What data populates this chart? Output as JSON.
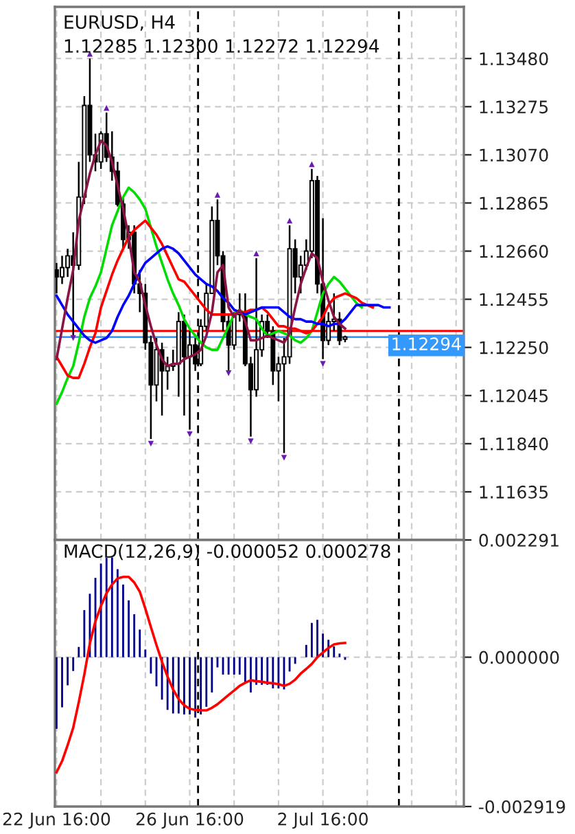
{
  "chart_data": [
    {
      "type": "candlestick",
      "title": "EURUSD, H4",
      "subtitle": "1.12285 1.12300 1.12272 1.12294",
      "ohlc": [
        [
          1.1258,
          1.1261,
          1.1248,
          1.1255
        ],
        [
          1.1255,
          1.1264,
          1.1252,
          1.1259
        ],
        [
          1.1259,
          1.1267,
          1.1255,
          1.1264
        ],
        [
          1.1264,
          1.1274,
          1.123,
          1.126
        ],
        [
          1.126,
          1.1304,
          1.1258,
          1.1289
        ],
        [
          1.1289,
          1.1332,
          1.1286,
          1.1328
        ],
        [
          1.1328,
          1.1348,
          1.1304,
          1.1307
        ],
        [
          1.1307,
          1.1316,
          1.13,
          1.1304
        ],
        [
          1.1304,
          1.1317,
          1.1301,
          1.1316
        ],
        [
          1.1316,
          1.1325,
          1.1304,
          1.1306
        ],
        [
          1.1306,
          1.1317,
          1.1296,
          1.13
        ],
        [
          1.13,
          1.1304,
          1.1285,
          1.1286
        ],
        [
          1.1286,
          1.1289,
          1.1267,
          1.1271
        ],
        [
          1.1271,
          1.1277,
          1.1267,
          1.1274
        ],
        [
          1.1274,
          1.1277,
          1.1248,
          1.1252
        ],
        [
          1.1252,
          1.1258,
          1.124,
          1.1248
        ],
        [
          1.1248,
          1.1252,
          1.1224,
          1.1227
        ],
        [
          1.1227,
          1.123,
          1.1186,
          1.1209
        ],
        [
          1.1209,
          1.1229,
          1.1202,
          1.1224
        ],
        [
          1.1224,
          1.1227,
          1.1196,
          1.1215
        ],
        [
          1.1215,
          1.1221,
          1.1207,
          1.1217
        ],
        [
          1.1217,
          1.1224,
          1.1215,
          1.1218
        ],
        [
          1.1218,
          1.124,
          1.1204,
          1.1236
        ],
        [
          1.1236,
          1.1239,
          1.1196,
          1.1221
        ],
        [
          1.1221,
          1.1232,
          1.119,
          1.1226
        ],
        [
          1.1226,
          1.1229,
          1.1215,
          1.1218
        ],
        [
          1.1218,
          1.1237,
          1.1217,
          1.1234
        ],
        [
          1.1234,
          1.1252,
          1.1232,
          1.1248
        ],
        [
          1.1248,
          1.1285,
          1.1248,
          1.1279
        ],
        [
          1.1279,
          1.1288,
          1.126,
          1.1264
        ],
        [
          1.1264,
          1.1266,
          1.1232,
          1.1236
        ],
        [
          1.1236,
          1.1239,
          1.1215,
          1.1226
        ],
        [
          1.1226,
          1.124,
          1.1224,
          1.1239
        ],
        [
          1.1239,
          1.1248,
          1.1236,
          1.124
        ],
        [
          1.124,
          1.1248,
          1.1217,
          1.1218
        ],
        [
          1.1218,
          1.1221,
          1.1187,
          1.1207
        ],
        [
          1.1207,
          1.1263,
          1.1204,
          1.1224
        ],
        [
          1.1224,
          1.1239,
          1.1221,
          1.1236
        ],
        [
          1.1236,
          1.1239,
          1.1229,
          1.1232
        ],
        [
          1.1232,
          1.1234,
          1.1209,
          1.1215
        ],
        [
          1.1215,
          1.1221,
          1.1202,
          1.1218
        ],
        [
          1.1218,
          1.1229,
          1.118,
          1.1221
        ],
        [
          1.1221,
          1.1277,
          1.1218,
          1.1267
        ],
        [
          1.1267,
          1.1271,
          1.1248,
          1.1255
        ],
        [
          1.1255,
          1.1264,
          1.1248,
          1.126
        ],
        [
          1.126,
          1.1271,
          1.1258,
          1.1266
        ],
        [
          1.1266,
          1.1301,
          1.1263,
          1.1296
        ],
        [
          1.1296,
          1.1298,
          1.1248,
          1.1252
        ],
        [
          1.1252,
          1.128,
          1.122,
          1.1228
        ],
        [
          1.1228,
          1.124,
          1.1226,
          1.1236
        ],
        [
          1.1236,
          1.1248,
          1.1232,
          1.1237
        ],
        [
          1.1237,
          1.124,
          1.1226,
          1.1228
        ],
        [
          1.12285,
          1.123,
          1.12272,
          1.12294
        ],
        null,
        null,
        null,
        null,
        null,
        null,
        null,
        null,
        null,
        null,
        null,
        null,
        null,
        null,
        null,
        null,
        null,
        null,
        null,
        null,
        null
      ],
      "series": [
        {
          "type": "line",
          "color": "#00dd00",
          "values": [
            1.1201,
            1.1206,
            1.1212,
            1.1217,
            1.1227,
            1.1238,
            1.1246,
            1.1251,
            1.1257,
            1.1267,
            1.1277,
            1.1283,
            1.1289,
            1.1293,
            1.1291,
            1.1288,
            1.1284,
            1.1276,
            1.1268,
            1.1261,
            1.1254,
            1.1248,
            1.1243,
            1.1237,
            1.1233,
            1.123,
            1.1227,
            1.1225,
            1.1224,
            1.1224,
            1.1229,
            1.1234,
            1.1239,
            1.1241,
            1.1239,
            1.1238,
            1.1237,
            1.1233,
            1.123,
            1.1231,
            1.1232,
            1.1231,
            1.123,
            1.1228,
            1.1227,
            1.1229,
            1.1232,
            1.124,
            1.1248,
            1.1252,
            1.1255,
            1.1253,
            1.125,
            1.1247,
            1.1244,
            1.1242,
            null,
            null,
            null,
            null,
            null,
            null,
            null,
            null,
            null,
            null,
            null,
            null,
            null,
            null,
            null,
            null,
            null,
            null
          ]
        },
        {
          "type": "line",
          "color": "#ff0000",
          "values": [
            1.1221,
            1.1217,
            1.1213,
            1.1212,
            1.1212,
            1.1218,
            1.1225,
            1.1231,
            1.1242,
            1.1249,
            1.1256,
            1.1262,
            1.1267,
            1.1272,
            1.1275,
            1.1277,
            1.1279,
            1.1276,
            1.1273,
            1.1269,
            1.1264,
            1.1259,
            1.1254,
            1.1253,
            1.125,
            1.1247,
            1.1244,
            1.1241,
            1.1239,
            1.1239,
            1.1239,
            1.1239,
            1.1239,
            1.124,
            1.124,
            1.1241,
            1.1241,
            1.1242,
            1.124,
            1.1237,
            1.1234,
            1.1234,
            1.1233,
            1.1233,
            1.1232,
            1.1231,
            1.1232,
            1.1235,
            1.1238,
            1.1243,
            1.1246,
            1.1247,
            1.1248,
            1.1247,
            1.1246,
            1.1244,
            1.1243,
            1.1242,
            null,
            null,
            null,
            null,
            null,
            null,
            null,
            null,
            null,
            null,
            null,
            null,
            null,
            null,
            null,
            null
          ]
        },
        {
          "type": "line",
          "color": "#0000ff",
          "values": [
            1.1247,
            1.1243,
            1.1239,
            1.1236,
            1.1233,
            1.123,
            1.1228,
            1.1227,
            1.1228,
            1.1229,
            1.1232,
            1.1238,
            1.1243,
            1.1247,
            1.1252,
            1.1257,
            1.1261,
            1.1263,
            1.1265,
            1.1267,
            1.1268,
            1.1267,
            1.1265,
            1.1262,
            1.1259,
            1.1256,
            1.1254,
            1.1252,
            1.1251,
            1.1249,
            1.1246,
            1.1244,
            1.1241,
            1.124,
            1.1239,
            1.124,
            1.1241,
            1.1242,
            1.1242,
            1.1242,
            1.1242,
            1.124,
            1.1238,
            1.1237,
            1.1237,
            1.1236,
            1.1236,
            1.1235,
            1.1235,
            1.1234,
            1.1235,
            1.1235,
            1.1237,
            1.124,
            1.1243,
            1.1243,
            1.1243,
            1.1243,
            1.1243,
            1.1242,
            1.1242,
            null,
            null,
            null,
            null,
            null,
            null,
            null,
            null,
            null,
            null,
            null,
            null,
            null
          ]
        },
        {
          "type": "line",
          "color": "#8b1446",
          "values": [
            1.122,
            1.1233,
            1.1246,
            1.1258,
            1.1279,
            1.1289,
            1.1299,
            1.1307,
            1.1313,
            1.1311,
            1.1304,
            1.1294,
            1.1284,
            1.1272,
            1.1257,
            1.1253,
            1.1243,
            1.1234,
            1.1226,
            1.122,
            1.1217,
            1.1218,
            1.1218,
            1.122,
            1.1221,
            1.1222,
            1.1224,
            1.123,
            1.124,
            1.1257,
            1.126,
            1.1242,
            1.1238,
            1.1241,
            1.1236,
            1.1228,
            1.1228,
            1.1229,
            1.123,
            1.1229,
            1.1228,
            1.1227,
            1.1231,
            1.1242,
            1.1252,
            1.1259,
            1.1265,
            1.1263,
            1.1253,
            1.1245,
            1.1238,
            1.1235,
            1.1233,
            null,
            null,
            null,
            null,
            null,
            null,
            null,
            null,
            null,
            null,
            null,
            null,
            null,
            null,
            null,
            null,
            null,
            null,
            null,
            null,
            null
          ]
        },
        {
          "type": "scatter",
          "marker": "triangle",
          "color": "#6a1bb0",
          "values": [
            null,
            null,
            null,
            null,
            null,
            null,
            1.135,
            null,
            null,
            1.1327,
            null,
            null,
            null,
            null,
            null,
            null,
            null,
            null,
            null,
            null,
            null,
            null,
            null,
            null,
            null,
            null,
            null,
            null,
            null,
            1.129,
            null,
            null,
            null,
            null,
            null,
            null,
            1.1265,
            null,
            null,
            null,
            null,
            null,
            1.1279,
            null,
            null,
            null,
            1.1303,
            null,
            null,
            null,
            null,
            null,
            null,
            null,
            null,
            null,
            null,
            null,
            null,
            null,
            null,
            null,
            null,
            null,
            null,
            null,
            null,
            null,
            null,
            null,
            null,
            null,
            null,
            null
          ]
        },
        {
          "type": "scatter",
          "marker": "triangle-down",
          "color": "#6a1bb0",
          "values": [
            null,
            null,
            null,
            1.1229,
            null,
            null,
            null,
            null,
            null,
            null,
            null,
            null,
            null,
            null,
            null,
            null,
            null,
            1.1184,
            null,
            null,
            null,
            null,
            null,
            null,
            1.1188,
            null,
            null,
            null,
            null,
            null,
            null,
            1.1214,
            null,
            null,
            null,
            1.1185,
            null,
            null,
            null,
            null,
            null,
            1.1178,
            null,
            null,
            null,
            null,
            null,
            null,
            1.1218,
            null,
            null,
            null,
            null,
            null,
            null,
            null,
            null,
            null,
            null,
            null,
            null,
            null,
            null,
            null,
            null,
            null,
            null,
            null,
            null,
            null,
            null,
            null,
            null,
            null
          ]
        }
      ],
      "ylim": [
        1.1143,
        1.137
      ],
      "yticks": [
        {
          "value": 1.1348,
          "label": "1.13480"
        },
        {
          "value": 1.13275,
          "label": "1.13275"
        },
        {
          "value": 1.1307,
          "label": "1.13070"
        },
        {
          "value": 1.12865,
          "label": "1.12865"
        },
        {
          "value": 1.1266,
          "label": "1.12660"
        },
        {
          "value": 1.12455,
          "label": "1.12455"
        },
        {
          "value": 1.1225,
          "label": "1.12250"
        },
        {
          "value": 1.12045,
          "label": "1.12045"
        },
        {
          "value": 1.1184,
          "label": "1.11840"
        },
        {
          "value": 1.11635,
          "label": "1.11635"
        }
      ],
      "grid": true,
      "tick_labels": "y",
      "ref_lines": [
        {
          "axis": "y",
          "value": 1.1232,
          "color": "#ff0000"
        },
        {
          "axis": "y",
          "value": 1.12294,
          "color": "#3399ff",
          "label": "1.12294"
        }
      ]
    },
    {
      "type": "bar",
      "title": "MACD(12,26,9) -0.000052 0.000278",
      "categories": [
        "22 Jun 16:00",
        null,
        null,
        null,
        null,
        null,
        null,
        null,
        null,
        null,
        null,
        null,
        null,
        null,
        null,
        null,
        null,
        null,
        null,
        null,
        null,
        null,
        null,
        null,
        "26 Jun 16:00",
        null,
        null,
        null,
        null,
        null,
        null,
        null,
        null,
        null,
        null,
        null,
        null,
        null,
        null,
        null,
        null,
        null,
        null,
        null,
        null,
        null,
        null,
        null,
        "2 Jul 16:00",
        null,
        null,
        null,
        null,
        null,
        null,
        null,
        null,
        null,
        null,
        null,
        null,
        null,
        null,
        null,
        null,
        null,
        null,
        null,
        null,
        null,
        null,
        null,
        null,
        null
      ],
      "series": [
        {
          "type": "bar",
          "color": "#00008b",
          "values": [
            -0.0014,
            -0.00098,
            -0.00055,
            -0.00027,
            0.0002,
            0.00092,
            0.00124,
            0.00155,
            0.00183,
            0.00194,
            0.00195,
            0.00172,
            0.00142,
            0.00111,
            0.00084,
            0.00054,
            0.00015,
            -0.00032,
            -0.00057,
            -0.00083,
            -0.00103,
            -0.0011,
            -0.0011,
            -0.00112,
            -0.00112,
            -0.00118,
            -0.00112,
            -0.00097,
            -0.00069,
            -0.0002,
            -0.00034,
            -0.00034,
            -0.00034,
            -0.00034,
            -0.0005,
            -0.00069,
            -0.00054,
            -0.00054,
            -0.00054,
            -0.00061,
            -0.00061,
            -0.00063,
            -0.00028,
            -0.00013,
            0.0,
            0.00024,
            0.00067,
            0.00073,
            0.00046,
            0.00034,
            0.00021,
            7e-05,
            -5.2e-05,
            null,
            null,
            null,
            null,
            null,
            null,
            null,
            null,
            null,
            null,
            null,
            null,
            null,
            null,
            null,
            null,
            null,
            null,
            null,
            null,
            null
          ]
        },
        {
          "type": "line",
          "color": "#ff0000",
          "values": [
            -0.00225,
            -0.00203,
            -0.00172,
            -0.00138,
            -0.00088,
            -0.00034,
            0.00027,
            0.0007,
            0.001,
            0.00125,
            0.00142,
            0.00154,
            0.00157,
            0.00157,
            0.00146,
            0.00128,
            0.00095,
            0.00059,
            0.00024,
            -9e-05,
            -0.00038,
            -0.00063,
            -0.00082,
            -0.00094,
            -0.00101,
            -0.00103,
            -0.00104,
            -0.00104,
            -0.00099,
            -0.00092,
            -0.00083,
            -0.00074,
            -0.00065,
            -0.00056,
            -0.0005,
            -0.00045,
            -0.00047,
            -0.00048,
            -0.0005,
            -0.00051,
            -0.00053,
            -0.00056,
            -0.00052,
            -0.00044,
            -0.00032,
            -0.00023,
            -0.00013,
            0.0,
            9e-05,
            0.00018,
            0.00025,
            0.00027,
            0.000278,
            null,
            null,
            null,
            null,
            null,
            null,
            null,
            null,
            null,
            null,
            null,
            null,
            null,
            null,
            null,
            null,
            null,
            null,
            null,
            null,
            null
          ]
        }
      ],
      "ylim": [
        -0.002919,
        0.002291
      ],
      "yticks": [
        {
          "value": 0.002291,
          "label": "0.002291"
        },
        {
          "value": 0,
          "label": "0.000000"
        },
        {
          "value": -0.002919,
          "label": "-0.002919"
        }
      ],
      "grid": true
    }
  ]
}
